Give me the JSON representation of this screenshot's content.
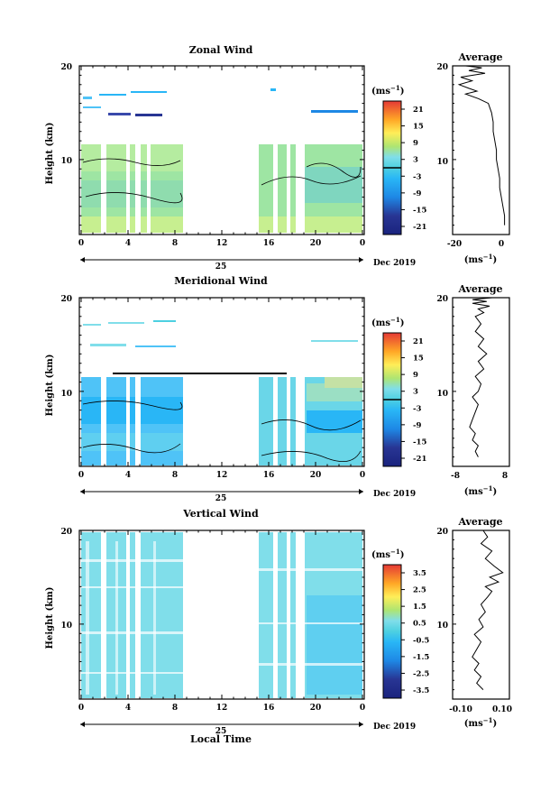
{
  "figure": {
    "x_axis": {
      "label": "Local Time",
      "ticks": [
        "0",
        "4",
        "8",
        "12",
        "16",
        "20",
        "0"
      ],
      "day_label": "25",
      "date_label": "Dec 2019"
    },
    "panels": [
      {
        "id": "zonal",
        "title": "Zonal Wind",
        "ylabel": "Height (km)",
        "yticks": [
          "20",
          "10"
        ],
        "unit_label": "(ms",
        "unit_exp": "−1",
        "colorbar_ticks": [
          "21",
          "15",
          "9",
          "3",
          "-3",
          "-9",
          "-15",
          "-21"
        ],
        "avg_title": "Average",
        "avg_yticks": [
          "20",
          "10"
        ],
        "avg_xticks": [
          "-20",
          "0"
        ],
        "avg_xlabel": "(ms",
        "avg_xexp": "−1"
      },
      {
        "id": "meridional",
        "title": "Meridional Wind",
        "ylabel": "Height (km)",
        "yticks": [
          "20",
          "10"
        ],
        "unit_label": "(ms",
        "unit_exp": "−1",
        "colorbar_ticks": [
          "21",
          "15",
          "9",
          "3",
          "-3",
          "-9",
          "-15",
          "-21"
        ],
        "avg_title": "Average",
        "avg_yticks": [
          "20",
          "10"
        ],
        "avg_xticks": [
          "-8",
          "8"
        ],
        "avg_xlabel": "(ms",
        "avg_xexp": "−1"
      },
      {
        "id": "vertical",
        "title": "Vertical Wind",
        "ylabel": "Height (km)",
        "yticks": [
          "20",
          "10"
        ],
        "unit_label": "(ms",
        "unit_exp": "−1",
        "colorbar_ticks": [
          "3.5",
          "2.5",
          "1.5",
          "0.5",
          "-0.5",
          "-1.5",
          "-2.5",
          "-3.5"
        ],
        "avg_title": "Average",
        "avg_yticks": [
          "20",
          "10"
        ],
        "avg_xticks": [
          "-0.10",
          "0.10"
        ],
        "avg_xlabel": "(ms",
        "avg_xexp": "−1"
      }
    ]
  },
  "chart_data": [
    {
      "type": "heatmap",
      "title": "Zonal Wind",
      "ylabel": "Height (km)",
      "xlabel": "Local Time",
      "x_range_hours": [
        0,
        24
      ],
      "y_range_km": [
        2,
        20
      ],
      "colorbar_range": [
        -21,
        21
      ],
      "colorbar_unit": "ms-1",
      "data_coverage_hours": [
        [
          0,
          8.8
        ],
        [
          15.3,
          24
        ]
      ],
      "typical_value_ms": -3
    },
    {
      "type": "line",
      "title": "Average",
      "of": "Zonal Wind",
      "x_ticks": [
        -20,
        0
      ],
      "xlim": [
        -30,
        5
      ],
      "ylim": [
        2,
        20
      ],
      "x": [
        2,
        2,
        1,
        0,
        -1,
        -1,
        -2,
        -3,
        -3,
        -4,
        -5,
        -5,
        -6,
        -7,
        -8,
        -14,
        -22,
        -15,
        -20,
        -26,
        -18,
        -25,
        -10,
        -20,
        -12,
        -22
      ],
      "y": [
        3,
        4,
        5,
        6,
        7,
        8,
        9,
        10,
        11,
        12,
        13,
        14,
        15,
        15.5,
        16,
        16.5,
        17,
        17.3,
        17.6,
        18,
        18.4,
        18.8,
        19.2,
        19.5,
        19.8,
        20
      ]
    },
    {
      "type": "heatmap",
      "title": "Meridional Wind",
      "ylabel": "Height (km)",
      "xlabel": "Local Time",
      "x_range_hours": [
        0,
        24
      ],
      "y_range_km": [
        2,
        20
      ],
      "colorbar_range": [
        -21,
        21
      ],
      "colorbar_unit": "ms-1",
      "data_coverage_hours": [
        [
          0,
          8.8
        ],
        [
          15.3,
          24
        ]
      ],
      "typical_value_ms": -4
    },
    {
      "type": "line",
      "title": "Average",
      "of": "Meridional Wind",
      "x_ticks": [
        -8,
        8
      ],
      "xlim": [
        -10,
        10
      ],
      "ylim": [
        2,
        20
      ],
      "x": [
        -1,
        -2,
        -1,
        -3,
        -2,
        -4,
        -3,
        -2,
        -1,
        -3,
        -1,
        0,
        -2,
        1,
        -1,
        2,
        -1,
        1,
        -2,
        0,
        -2,
        1,
        -1,
        3,
        -3,
        2,
        -3,
        4
      ],
      "y": [
        3,
        3.6,
        4.2,
        4.8,
        5.5,
        6.2,
        7,
        7.8,
        8.6,
        9.4,
        10,
        10.8,
        11.6,
        12.4,
        13.2,
        14,
        14.8,
        15.6,
        16.4,
        17.2,
        18,
        18.4,
        18.8,
        19.1,
        19.4,
        19.6,
        19.8,
        20
      ]
    },
    {
      "type": "heatmap",
      "title": "Vertical Wind",
      "ylabel": "Height (km)",
      "xlabel": "Local Time",
      "x_range_hours": [
        0,
        24
      ],
      "y_range_km": [
        2,
        20
      ],
      "colorbar_range": [
        -3.5,
        3.5
      ],
      "colorbar_unit": "ms-1",
      "data_coverage_hours": [
        [
          0,
          8.8
        ],
        [
          15.3,
          24
        ]
      ],
      "typical_value_ms": 0
    },
    {
      "type": "line",
      "title": "Average",
      "of": "Vertical Wind",
      "x_ticks": [
        -0.1,
        0.1
      ],
      "xlim": [
        -0.13,
        0.13
      ],
      "ylim": [
        2,
        20
      ],
      "x": [
        0.01,
        -0.02,
        0.0,
        -0.03,
        -0.01,
        -0.04,
        -0.02,
        0.0,
        -0.03,
        0.01,
        -0.01,
        0.02,
        0.0,
        0.03,
        0.05,
        0.02,
        0.08,
        0.04,
        0.1,
        0.06,
        0.02,
        0.05,
        0.0,
        0.03,
        0.01
      ],
      "y": [
        3,
        3.7,
        4.4,
        5.1,
        5.8,
        6.5,
        7.3,
        8.1,
        8.9,
        9.7,
        10.5,
        11.3,
        12.1,
        12.9,
        13.5,
        14,
        14.5,
        15,
        15.5,
        16.2,
        17,
        17.8,
        18.6,
        19.3,
        20
      ]
    }
  ]
}
